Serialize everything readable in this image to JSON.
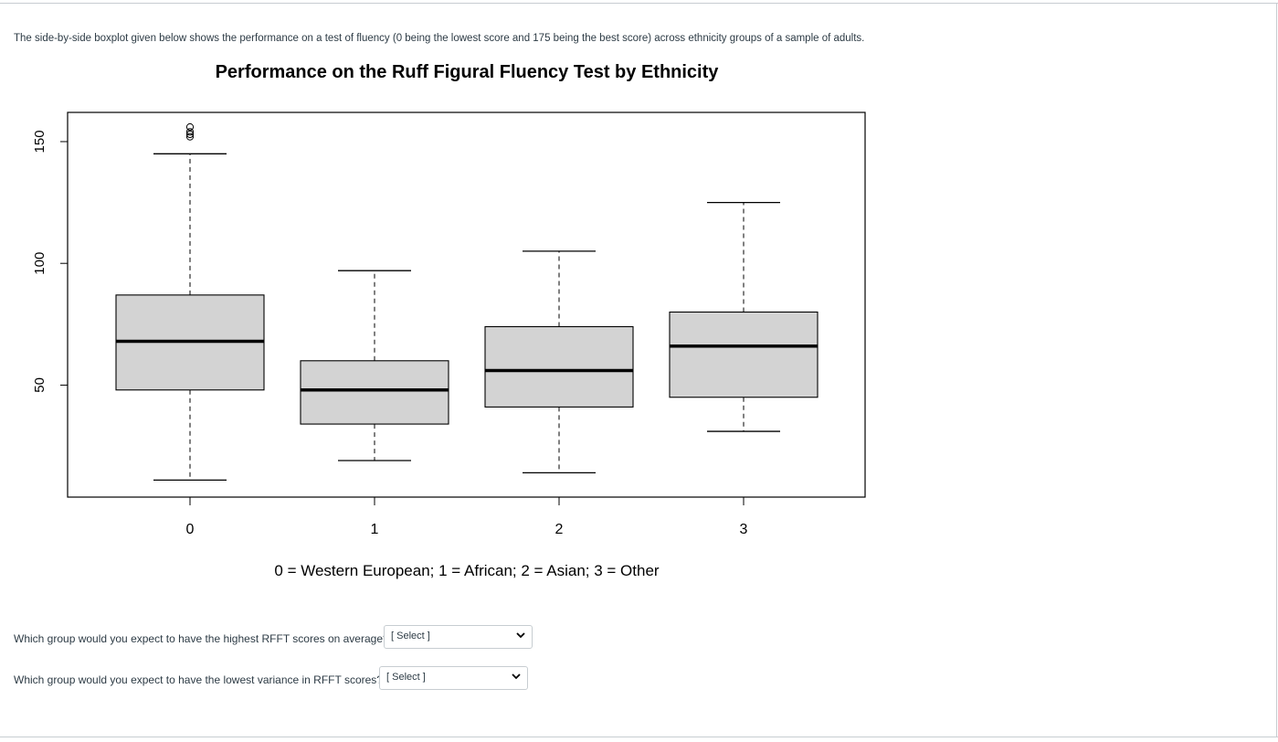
{
  "intro_text": "The side-by-side boxplot given below shows the performance on a test of fluency (0 being the lowest score and 175 being the best score)  across ethnicity groups of a sample of adults.",
  "chart_data": {
    "type": "boxplot",
    "title": "Performance on the Ruff Figural Fluency Test by Ethnicity",
    "xlabel": "0 = Western European; 1 = African; 2 = Asian; 3 = Other",
    "ylabel": "",
    "categories": [
      "0",
      "1",
      "2",
      "3"
    ],
    "y_ticks": [
      50,
      100,
      150
    ],
    "ylim": [
      4,
      162
    ],
    "boxes": [
      {
        "category": "0",
        "whisker_low": 11,
        "q1": 48,
        "median": 68,
        "q3": 87,
        "whisker_high": 145,
        "outliers": [
          152,
          153,
          154,
          156
        ]
      },
      {
        "category": "1",
        "whisker_low": 19,
        "q1": 34,
        "median": 48,
        "q3": 60,
        "whisker_high": 97,
        "outliers": []
      },
      {
        "category": "2",
        "whisker_low": 14,
        "q1": 41,
        "median": 56,
        "q3": 74,
        "whisker_high": 105,
        "outliers": []
      },
      {
        "category": "3",
        "whisker_low": 31,
        "q1": 45,
        "median": 66,
        "q3": 80,
        "whisker_high": 125,
        "outliers": []
      }
    ],
    "box_fill": "#d3d3d3",
    "grid": false,
    "legend": "none"
  },
  "questions": [
    {
      "text": "Which group would you expect to have the highest RFFT scores on average?",
      "select_value": "[ Select ]"
    },
    {
      "text": "Which group would you expect to have the lowest variance in RFFT scores?",
      "select_value": "[ Select ]"
    }
  ],
  "icons": {
    "select_chevron": "chevron-down-icon"
  }
}
